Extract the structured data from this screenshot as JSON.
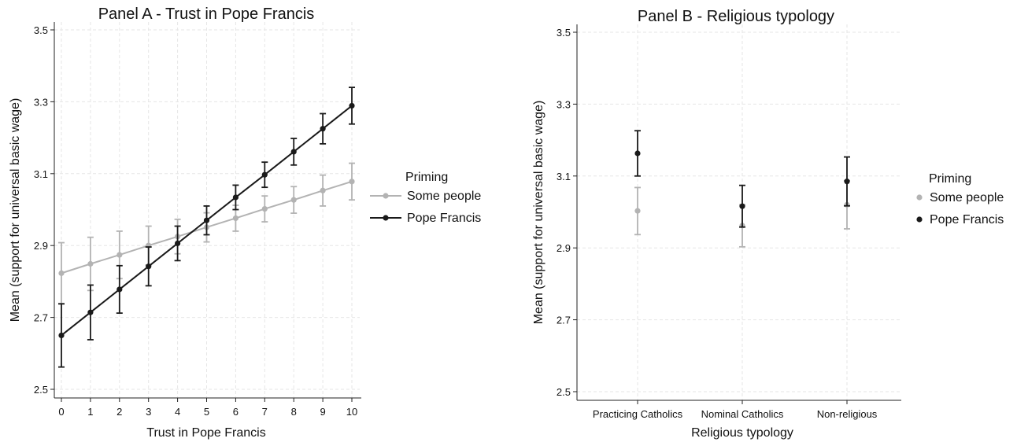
{
  "chart_data": [
    {
      "type": "line",
      "title": "Panel A - Trust in Pope Francis",
      "xlabel": "Trust in Pope Francis",
      "ylabel": "Mean (support for universal basic wage)",
      "x": [
        0,
        1,
        2,
        3,
        4,
        5,
        6,
        7,
        8,
        9,
        10
      ],
      "xlim": [
        0,
        10
      ],
      "ylim": [
        2.5,
        3.5
      ],
      "yticks": [
        "2.5",
        "2.7",
        "2.9",
        "3.1",
        "3.3",
        "3.5"
      ],
      "xticks": [
        "0",
        "1",
        "2",
        "3",
        "4",
        "5",
        "6",
        "7",
        "8",
        "9",
        "10"
      ],
      "grid": true,
      "legend": {
        "title": "Priming",
        "placement": "right",
        "entries": [
          "Some people",
          "Pope Francis"
        ]
      },
      "series": [
        {
          "name": "Some people",
          "color": "#b3b3b3",
          "values": [
            2.823,
            2.849,
            2.874,
            2.9,
            2.925,
            2.951,
            2.976,
            3.002,
            3.027,
            3.053,
            3.078
          ],
          "lower": [
            2.737,
            2.775,
            2.808,
            2.846,
            2.877,
            2.91,
            2.94,
            2.966,
            2.99,
            3.01,
            3.027
          ],
          "upper": [
            2.908,
            2.923,
            2.94,
            2.954,
            2.973,
            2.991,
            3.012,
            3.038,
            3.064,
            3.096,
            3.129
          ]
        },
        {
          "name": "Pope Francis",
          "color": "#1a1a1a",
          "values": [
            2.65,
            2.714,
            2.778,
            2.842,
            2.906,
            2.97,
            3.034,
            3.097,
            3.161,
            3.225,
            3.289
          ],
          "lower": [
            2.562,
            2.638,
            2.712,
            2.788,
            2.858,
            2.93,
            3.0,
            3.062,
            3.124,
            3.183,
            3.238
          ],
          "upper": [
            2.738,
            2.79,
            2.844,
            2.896,
            2.954,
            3.01,
            3.068,
            3.132,
            3.198,
            3.267,
            3.34
          ]
        }
      ]
    },
    {
      "type": "scatter",
      "title": "Panel B - Religious typology",
      "xlabel": "Religious typology",
      "ylabel": "Mean (support for universal basic wage)",
      "categories": [
        "Practicing Catholics",
        "Nominal Catholics",
        "Non-religious"
      ],
      "ylim": [
        2.5,
        3.5
      ],
      "yticks": [
        "2.5",
        "2.7",
        "2.9",
        "3.1",
        "3.3",
        "3.5"
      ],
      "grid": true,
      "legend": {
        "title": "Priming",
        "placement": "right",
        "entries": [
          "Some people",
          "Pope Francis"
        ]
      },
      "series": [
        {
          "name": "Some people",
          "color": "#b3b3b3",
          "values": [
            3.003,
            2.962,
            3.02
          ],
          "lower": [
            2.937,
            2.903,
            2.953
          ],
          "upper": [
            3.068,
            3.02,
            3.087
          ]
        },
        {
          "name": "Pope Francis",
          "color": "#1a1a1a",
          "values": [
            3.163,
            3.016,
            3.085
          ],
          "lower": [
            3.1,
            2.958,
            3.017
          ],
          "upper": [
            3.226,
            3.074,
            3.153
          ]
        }
      ]
    }
  ]
}
